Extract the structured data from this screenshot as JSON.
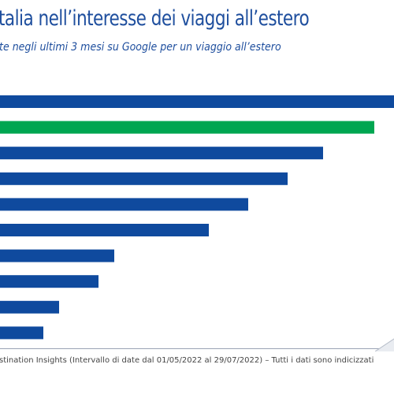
{
  "header": {
    "title": "talia nell’interesse dei viaggi all’estero",
    "subtitle": "te negli ultimi 3 mesi su Google per un viaggio all’estero"
  },
  "footer": {
    "source": "stination Insights (Intervallo di date dal 01/05/2022 al 29/07/2022) – Tutti i dati sono indicizzati"
  },
  "colors": {
    "blue": "#0f4a9e",
    "green": "#00a651",
    "title": "#1f4f9e"
  },
  "chart_data": {
    "type": "bar",
    "orientation": "horizontal",
    "xlim": [
      0,
      100
    ],
    "values": [
      100,
      95,
      82,
      73,
      63,
      53,
      29,
      25,
      15,
      11
    ],
    "highlight_index": 1,
    "grid": false,
    "legend": "none"
  }
}
